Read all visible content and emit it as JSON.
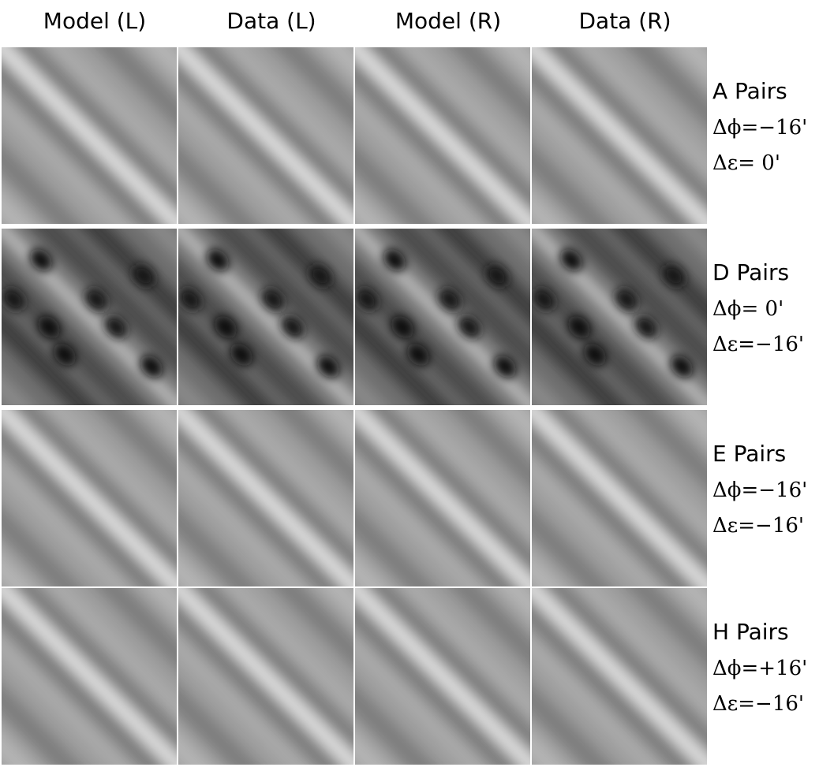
{
  "columns": [
    "Model (L)",
    "Data (L)",
    "Model (R)",
    "Data (R)"
  ],
  "rows": [
    {
      "label": "A Pairs",
      "dphi": "Δϕ=−16'",
      "deps": "Δε= 0'"
    },
    {
      "label": "D Pairs",
      "dphi": "Δϕ= 0'",
      "deps": "Δε=−16'"
    },
    {
      "label": "E Pairs",
      "dphi": "Δϕ=−16'",
      "deps": "Δε=−16'"
    },
    {
      "label": "H Pairs",
      "dphi": "Δϕ=+16'",
      "deps": "Δε=−16'"
    }
  ]
}
